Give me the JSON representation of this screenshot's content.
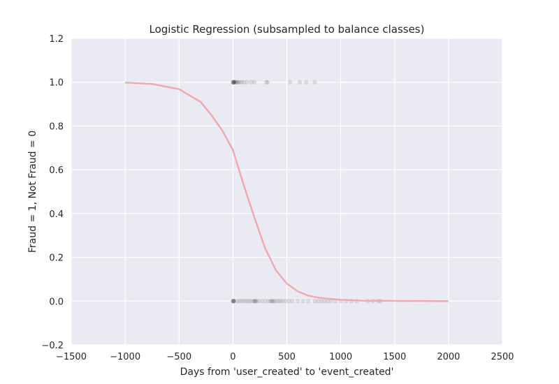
{
  "chart_data": {
    "type": "scatter",
    "title": "Logistic Regression (subsampled to balance classes)",
    "xlabel": "Days from 'user_created' to 'event_created'",
    "ylabel": "Fraud = 1, Not Fraud = 0",
    "xlim": [
      -1500,
      2500
    ],
    "ylim": [
      -0.2,
      1.2
    ],
    "xticks": [
      -1500,
      -1000,
      -500,
      0,
      500,
      1000,
      1500,
      2000,
      2500
    ],
    "xtick_labels": [
      "−1500",
      "−1000",
      "−500",
      "0",
      "500",
      "1000",
      "1500",
      "2000",
      "2500"
    ],
    "yticks": [
      -0.2,
      0.0,
      0.2,
      0.4,
      0.6,
      0.8,
      1.0,
      1.2
    ],
    "ytick_labels": [
      "−0.2",
      "0.0",
      "0.2",
      "0.4",
      "0.6",
      "0.8",
      "1.0",
      "1.2"
    ],
    "grid": true,
    "legend": "none",
    "colors": {
      "background": "#eaeaf2",
      "grid": "#ffffff",
      "points": "#000000",
      "curve": "#f4a6ad"
    },
    "series": [
      {
        "kind": "points",
        "point_opacity": 0.1,
        "x": [
          0,
          2,
          4,
          6,
          8,
          10,
          15,
          20,
          30,
          40,
          50,
          60,
          80,
          100,
          130,
          170,
          200,
          310,
          320,
          530,
          620,
          680,
          760
        ],
        "y": [
          1,
          1,
          1,
          1,
          1,
          1,
          1,
          1,
          1,
          1,
          1,
          1,
          1,
          1,
          1,
          1,
          1,
          1,
          1,
          1,
          1,
          1,
          1
        ]
      },
      {
        "kind": "points",
        "point_opacity": 0.1,
        "x": [
          0,
          2,
          4,
          6,
          8,
          10,
          40,
          60,
          80,
          100,
          120,
          140,
          160,
          180,
          200,
          200,
          210,
          220,
          240,
          270,
          300,
          330,
          350,
          360,
          370,
          380,
          400,
          420,
          440,
          460,
          490,
          520,
          550,
          600,
          650,
          700,
          760,
          790,
          820,
          850,
          880,
          910,
          950,
          1000,
          1050,
          1100,
          1150,
          1250,
          1300,
          1350,
          1370
        ],
        "y": [
          0,
          0,
          0,
          0,
          0,
          0,
          0,
          0,
          0,
          0,
          0,
          0,
          0,
          0,
          0,
          0,
          0,
          0,
          0,
          0,
          0,
          0,
          0,
          0,
          0,
          0,
          0,
          0,
          0,
          0,
          0,
          0,
          0,
          0,
          0,
          0,
          0,
          0,
          0,
          0,
          0,
          0,
          0,
          0,
          0,
          0,
          0,
          0,
          0,
          0,
          0
        ]
      },
      {
        "kind": "line",
        "x": [
          -1000,
          -750,
          -500,
          -300,
          -200,
          -100,
          0,
          100,
          200,
          300,
          400,
          500,
          600,
          700,
          800,
          1000,
          1200,
          1500,
          2000
        ],
        "y": [
          0.998,
          0.992,
          0.968,
          0.91,
          0.85,
          0.78,
          0.69,
          0.53,
          0.38,
          0.24,
          0.14,
          0.08,
          0.045,
          0.025,
          0.015,
          0.006,
          0.002,
          0.001,
          0.0
        ]
      }
    ]
  }
}
